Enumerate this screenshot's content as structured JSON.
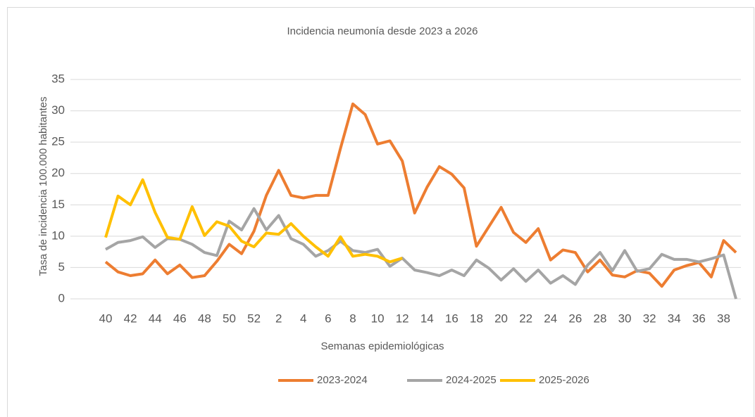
{
  "chart_data": {
    "type": "line",
    "title": "Incidencia neumonía desde 2023 a 2026",
    "x_label": "Semanas epidemiológicas",
    "y_label": "Tasa de incidencia 100.000 habitantes",
    "categories": [
      "40",
      null,
      "42",
      null,
      "44",
      null,
      "46",
      null,
      "48",
      null,
      "50",
      null,
      "52",
      null,
      "2",
      null,
      "4",
      null,
      "6",
      null,
      "8",
      null,
      "10",
      null,
      "12",
      null,
      "14",
      null,
      "16",
      null,
      "18",
      null,
      "20",
      null,
      "22",
      null,
      "24",
      null,
      "26",
      null,
      "28",
      null,
      "30",
      null,
      "32",
      null,
      "34",
      null,
      "36",
      null,
      "38",
      null
    ],
    "series": [
      {
        "name": "2023-2024",
        "color": "#ed7d31",
        "values": [
          5.9,
          4.3,
          3.7,
          4.0,
          6.2,
          4.0,
          5.4,
          3.4,
          3.7,
          6.0,
          8.7,
          7.2,
          10.8,
          16.5,
          20.5,
          16.5,
          16.1,
          16.5,
          16.5,
          24.0,
          31.1,
          29.4,
          24.7,
          25.2,
          22.0,
          13.7,
          17.8,
          21.1,
          19.9,
          17.7,
          8.4,
          11.5,
          14.6,
          10.6,
          9.0,
          11.2,
          6.2,
          7.8,
          7.4,
          4.3,
          6.2,
          3.8,
          3.5,
          4.5,
          4.1,
          2.0,
          4.6,
          5.3,
          5.8,
          3.5,
          9.3,
          7.4
        ]
      },
      {
        "name": "2024-2025",
        "color": "#a5a5a5",
        "values": [
          7.9,
          9.0,
          9.3,
          9.9,
          8.2,
          9.6,
          9.5,
          8.7,
          7.4,
          6.9,
          12.4,
          11.0,
          14.4,
          11.0,
          13.3,
          9.6,
          8.7,
          6.8,
          7.7,
          9.2,
          7.7,
          7.4,
          7.9,
          5.2,
          6.5,
          4.6,
          4.2,
          3.7,
          4.6,
          3.7,
          6.2,
          4.9,
          3.0,
          4.8,
          2.8,
          4.6,
          2.5,
          3.7,
          2.3,
          5.4,
          7.4,
          4.5,
          7.7,
          4.4,
          4.8,
          7.1,
          6.3,
          6.3,
          5.9,
          6.4,
          7.0,
          0
        ]
      },
      {
        "name": "2025-2026",
        "color": "#ffc000",
        "values": [
          9.8,
          16.4,
          15.0,
          19.0,
          13.8,
          9.8,
          9.5,
          14.7,
          10.1,
          12.3,
          11.6,
          9.2,
          8.3,
          10.5,
          10.3,
          12.0,
          10.0,
          8.3,
          6.8,
          9.9,
          6.8,
          7.1,
          6.8,
          5.9,
          6.5,
          null,
          null,
          null,
          null,
          null,
          null,
          null,
          null,
          null,
          null,
          null,
          null,
          null,
          null,
          null,
          null,
          null,
          null,
          null,
          null,
          null,
          null,
          null,
          null,
          null,
          null,
          null
        ]
      }
    ],
    "ylim": [
      0,
      35
    ],
    "yticks": [
      0,
      5,
      10,
      15,
      20,
      25,
      30,
      35
    ],
    "grid": true,
    "legend": "bottom"
  }
}
